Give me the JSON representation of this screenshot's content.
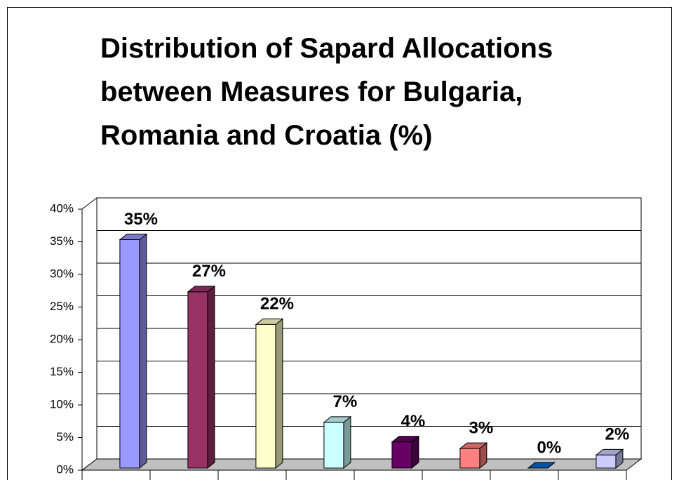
{
  "chart_data": {
    "type": "bar3d",
    "title": "Distribution of Sapard Allocations between Measures for Bulgaria, Romania and Croatia (%)",
    "categories": [
      null,
      null,
      null,
      null,
      null,
      null,
      null,
      null
    ],
    "values": [
      35,
      27,
      22,
      7,
      4,
      3,
      0,
      2
    ],
    "value_labels": [
      "35%",
      "27%",
      "22%",
      "7%",
      "4%",
      "3%",
      "0%",
      "2%"
    ],
    "colors": [
      "#9999ff",
      "#993366",
      "#ffffcc",
      "#ccffff",
      "#660066",
      "#ff8080",
      "#0066cc",
      "#ccccff"
    ],
    "ylim": [
      0,
      40
    ],
    "yticks": [
      {
        "value": 0,
        "label": "0%"
      },
      {
        "value": 5,
        "label": "5%"
      },
      {
        "value": 10,
        "label": "10%"
      },
      {
        "value": 15,
        "label": "15%"
      },
      {
        "value": 20,
        "label": "20%"
      },
      {
        "value": 25,
        "label": "25%"
      },
      {
        "value": 30,
        "label": "30%"
      },
      {
        "value": 35,
        "label": "35%"
      },
      {
        "value": 40,
        "label": "40%"
      }
    ],
    "grid": true
  }
}
